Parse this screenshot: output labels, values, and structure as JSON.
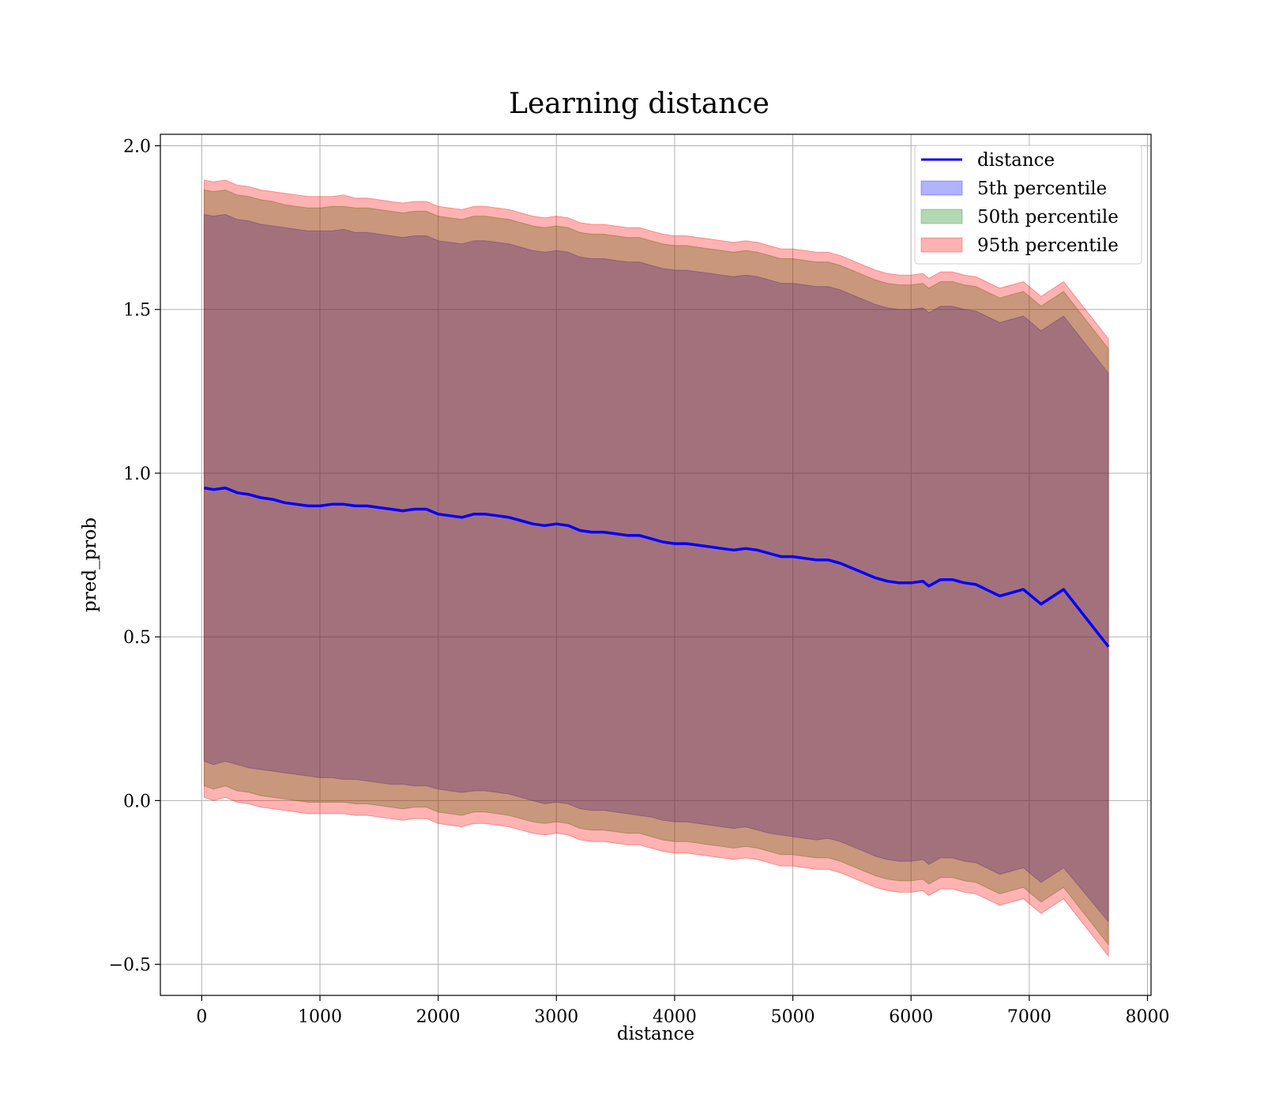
{
  "chart_data": {
    "type": "line",
    "title": "Learning distance",
    "xlabel": "distance",
    "ylabel": "pred_prob",
    "xlim": [
      -350,
      8030
    ],
    "ylim": [
      -0.595,
      2.035
    ],
    "xticks": [
      0,
      1000,
      2000,
      3000,
      4000,
      5000,
      6000,
      7000,
      8000
    ],
    "xtick_labels": [
      "0",
      "1000",
      "2000",
      "3000",
      "4000",
      "5000",
      "6000",
      "7000",
      "8000"
    ],
    "yticks": [
      -0.5,
      0.0,
      0.5,
      1.0,
      1.5,
      2.0
    ],
    "ytick_labels": [
      "−0.5",
      "0.0",
      "0.5",
      "1.0",
      "1.5",
      "2.0"
    ],
    "grid": true,
    "legend_position": "top-right",
    "colors": {
      "line": "#0000ff",
      "band_5": "#0000ff",
      "band_50": "#008000",
      "band_95": "#ff0000"
    },
    "series": [
      {
        "name": "distance",
        "kind": "line",
        "x": [
          20,
          100,
          200,
          300,
          400,
          500,
          600,
          700,
          800,
          900,
          1000,
          1100,
          1200,
          1300,
          1400,
          1500,
          1600,
          1700,
          1800,
          1900,
          2000,
          2100,
          2200,
          2300,
          2400,
          2500,
          2600,
          2700,
          2800,
          2900,
          3000,
          3100,
          3200,
          3300,
          3400,
          3500,
          3600,
          3700,
          3800,
          3900,
          4000,
          4100,
          4200,
          4300,
          4400,
          4500,
          4600,
          4700,
          4800,
          4900,
          5000,
          5100,
          5200,
          5300,
          5400,
          5500,
          5600,
          5700,
          5800,
          5900,
          6000,
          6100,
          6150,
          6250,
          6350,
          6450,
          6550,
          6750,
          6950,
          7100,
          7290,
          7670
        ],
        "y": [
          0.955,
          0.95,
          0.955,
          0.94,
          0.935,
          0.925,
          0.92,
          0.91,
          0.905,
          0.9,
          0.9,
          0.905,
          0.905,
          0.9,
          0.9,
          0.895,
          0.89,
          0.885,
          0.89,
          0.89,
          0.875,
          0.87,
          0.865,
          0.875,
          0.875,
          0.87,
          0.865,
          0.855,
          0.845,
          0.84,
          0.845,
          0.84,
          0.825,
          0.82,
          0.82,
          0.815,
          0.81,
          0.81,
          0.8,
          0.79,
          0.785,
          0.785,
          0.78,
          0.775,
          0.77,
          0.765,
          0.77,
          0.765,
          0.755,
          0.745,
          0.745,
          0.74,
          0.735,
          0.735,
          0.725,
          0.71,
          0.695,
          0.68,
          0.67,
          0.665,
          0.665,
          0.67,
          0.655,
          0.675,
          0.675,
          0.665,
          0.66,
          0.625,
          0.645,
          0.6,
          0.645,
          0.47
        ]
      },
      {
        "name": "5th percentile",
        "kind": "band",
        "x": [
          20,
          100,
          200,
          300,
          400,
          500,
          600,
          700,
          800,
          900,
          1000,
          1100,
          1200,
          1300,
          1400,
          1500,
          1600,
          1700,
          1800,
          1900,
          2000,
          2100,
          2200,
          2300,
          2400,
          2500,
          2600,
          2700,
          2800,
          2900,
          3000,
          3100,
          3200,
          3300,
          3400,
          3500,
          3600,
          3700,
          3800,
          3900,
          4000,
          4100,
          4200,
          4300,
          4400,
          4500,
          4600,
          4700,
          4800,
          4900,
          5000,
          5100,
          5200,
          5300,
          5400,
          5500,
          5600,
          5700,
          5800,
          5900,
          6000,
          6100,
          6150,
          6250,
          6350,
          6450,
          6550,
          6750,
          6950,
          7100,
          7290,
          7670
        ],
        "lower": [
          0.12,
          0.11,
          0.12,
          0.11,
          0.1,
          0.095,
          0.09,
          0.085,
          0.08,
          0.075,
          0.07,
          0.07,
          0.065,
          0.065,
          0.06,
          0.055,
          0.05,
          0.05,
          0.045,
          0.045,
          0.035,
          0.03,
          0.025,
          0.03,
          0.03,
          0.025,
          0.02,
          0.01,
          0.0,
          -0.01,
          -0.005,
          -0.01,
          -0.025,
          -0.03,
          -0.03,
          -0.035,
          -0.04,
          -0.045,
          -0.05,
          -0.06,
          -0.065,
          -0.065,
          -0.07,
          -0.075,
          -0.08,
          -0.085,
          -0.08,
          -0.09,
          -0.1,
          -0.105,
          -0.11,
          -0.115,
          -0.12,
          -0.115,
          -0.125,
          -0.14,
          -0.155,
          -0.17,
          -0.18,
          -0.185,
          -0.185,
          -0.18,
          -0.195,
          -0.175,
          -0.175,
          -0.185,
          -0.19,
          -0.225,
          -0.205,
          -0.25,
          -0.205,
          -0.37
        ],
        "upper": [
          1.79,
          1.785,
          1.79,
          1.775,
          1.77,
          1.76,
          1.755,
          1.75,
          1.745,
          1.74,
          1.74,
          1.74,
          1.745,
          1.735,
          1.735,
          1.73,
          1.725,
          1.72,
          1.725,
          1.725,
          1.71,
          1.705,
          1.7,
          1.71,
          1.71,
          1.705,
          1.7,
          1.69,
          1.68,
          1.675,
          1.68,
          1.675,
          1.66,
          1.655,
          1.655,
          1.65,
          1.645,
          1.645,
          1.635,
          1.625,
          1.62,
          1.62,
          1.615,
          1.61,
          1.605,
          1.6,
          1.605,
          1.6,
          1.59,
          1.58,
          1.58,
          1.575,
          1.57,
          1.57,
          1.56,
          1.545,
          1.53,
          1.515,
          1.505,
          1.5,
          1.5,
          1.505,
          1.49,
          1.51,
          1.51,
          1.5,
          1.495,
          1.46,
          1.48,
          1.435,
          1.48,
          1.305
        ]
      },
      {
        "name": "50th percentile",
        "kind": "band",
        "x": [
          20,
          100,
          200,
          300,
          400,
          500,
          600,
          700,
          800,
          900,
          1000,
          1100,
          1200,
          1300,
          1400,
          1500,
          1600,
          1700,
          1800,
          1900,
          2000,
          2100,
          2200,
          2300,
          2400,
          2500,
          2600,
          2700,
          2800,
          2900,
          3000,
          3100,
          3200,
          3300,
          3400,
          3500,
          3600,
          3700,
          3800,
          3900,
          4000,
          4100,
          4200,
          4300,
          4400,
          4500,
          4600,
          4700,
          4800,
          4900,
          5000,
          5100,
          5200,
          5300,
          5400,
          5500,
          5600,
          5700,
          5800,
          5900,
          6000,
          6100,
          6150,
          6250,
          6350,
          6450,
          6550,
          6750,
          6950,
          7100,
          7290,
          7670
        ],
        "lower": [
          0.045,
          0.035,
          0.045,
          0.03,
          0.025,
          0.015,
          0.01,
          0.005,
          0.0,
          -0.005,
          -0.005,
          -0.005,
          -0.005,
          -0.01,
          -0.01,
          -0.015,
          -0.02,
          -0.025,
          -0.02,
          -0.02,
          -0.035,
          -0.04,
          -0.045,
          -0.035,
          -0.035,
          -0.04,
          -0.045,
          -0.055,
          -0.065,
          -0.07,
          -0.065,
          -0.07,
          -0.085,
          -0.09,
          -0.09,
          -0.095,
          -0.1,
          -0.1,
          -0.11,
          -0.12,
          -0.125,
          -0.125,
          -0.13,
          -0.135,
          -0.14,
          -0.145,
          -0.14,
          -0.145,
          -0.155,
          -0.165,
          -0.165,
          -0.17,
          -0.175,
          -0.175,
          -0.185,
          -0.2,
          -0.215,
          -0.23,
          -0.24,
          -0.245,
          -0.245,
          -0.24,
          -0.255,
          -0.235,
          -0.235,
          -0.245,
          -0.25,
          -0.285,
          -0.265,
          -0.31,
          -0.265,
          -0.44
        ],
        "upper": [
          1.865,
          1.86,
          1.865,
          1.85,
          1.845,
          1.835,
          1.83,
          1.82,
          1.815,
          1.81,
          1.81,
          1.815,
          1.815,
          1.81,
          1.81,
          1.805,
          1.8,
          1.795,
          1.8,
          1.8,
          1.785,
          1.78,
          1.775,
          1.785,
          1.785,
          1.78,
          1.775,
          1.765,
          1.755,
          1.75,
          1.755,
          1.75,
          1.735,
          1.73,
          1.73,
          1.725,
          1.72,
          1.72,
          1.71,
          1.7,
          1.695,
          1.695,
          1.69,
          1.685,
          1.68,
          1.675,
          1.68,
          1.675,
          1.665,
          1.655,
          1.655,
          1.65,
          1.645,
          1.645,
          1.635,
          1.62,
          1.605,
          1.59,
          1.58,
          1.575,
          1.575,
          1.58,
          1.565,
          1.585,
          1.585,
          1.575,
          1.57,
          1.535,
          1.555,
          1.51,
          1.555,
          1.38
        ]
      },
      {
        "name": "95th percentile",
        "kind": "band",
        "x": [
          20,
          100,
          200,
          300,
          400,
          500,
          600,
          700,
          800,
          900,
          1000,
          1100,
          1200,
          1300,
          1400,
          1500,
          1600,
          1700,
          1800,
          1900,
          2000,
          2100,
          2200,
          2300,
          2400,
          2500,
          2600,
          2700,
          2800,
          2900,
          3000,
          3100,
          3200,
          3300,
          3400,
          3500,
          3600,
          3700,
          3800,
          3900,
          4000,
          4100,
          4200,
          4300,
          4400,
          4500,
          4600,
          4700,
          4800,
          4900,
          5000,
          5100,
          5200,
          5300,
          5400,
          5500,
          5600,
          5700,
          5800,
          5900,
          6000,
          6100,
          6150,
          6250,
          6350,
          6450,
          6550,
          6750,
          6950,
          7100,
          7290,
          7670
        ],
        "lower": [
          0.01,
          0.0,
          0.01,
          -0.005,
          -0.01,
          -0.02,
          -0.025,
          -0.03,
          -0.035,
          -0.04,
          -0.04,
          -0.04,
          -0.04,
          -0.045,
          -0.045,
          -0.05,
          -0.055,
          -0.06,
          -0.055,
          -0.055,
          -0.07,
          -0.075,
          -0.08,
          -0.07,
          -0.07,
          -0.075,
          -0.08,
          -0.09,
          -0.1,
          -0.105,
          -0.1,
          -0.105,
          -0.12,
          -0.125,
          -0.125,
          -0.13,
          -0.135,
          -0.135,
          -0.145,
          -0.155,
          -0.16,
          -0.16,
          -0.165,
          -0.17,
          -0.175,
          -0.18,
          -0.175,
          -0.18,
          -0.19,
          -0.2,
          -0.2,
          -0.205,
          -0.21,
          -0.21,
          -0.22,
          -0.235,
          -0.25,
          -0.265,
          -0.275,
          -0.28,
          -0.28,
          -0.275,
          -0.29,
          -0.27,
          -0.27,
          -0.28,
          -0.285,
          -0.32,
          -0.3,
          -0.345,
          -0.3,
          -0.475
        ],
        "upper": [
          1.895,
          1.89,
          1.895,
          1.88,
          1.875,
          1.865,
          1.86,
          1.855,
          1.85,
          1.845,
          1.845,
          1.845,
          1.85,
          1.84,
          1.84,
          1.835,
          1.83,
          1.825,
          1.83,
          1.83,
          1.815,
          1.81,
          1.805,
          1.815,
          1.815,
          1.81,
          1.805,
          1.795,
          1.785,
          1.78,
          1.785,
          1.78,
          1.765,
          1.76,
          1.76,
          1.755,
          1.75,
          1.75,
          1.74,
          1.73,
          1.725,
          1.725,
          1.72,
          1.715,
          1.71,
          1.705,
          1.71,
          1.705,
          1.695,
          1.685,
          1.685,
          1.68,
          1.675,
          1.675,
          1.665,
          1.65,
          1.635,
          1.62,
          1.61,
          1.605,
          1.605,
          1.61,
          1.595,
          1.615,
          1.615,
          1.605,
          1.6,
          1.565,
          1.585,
          1.54,
          1.585,
          1.41
        ]
      }
    ]
  }
}
